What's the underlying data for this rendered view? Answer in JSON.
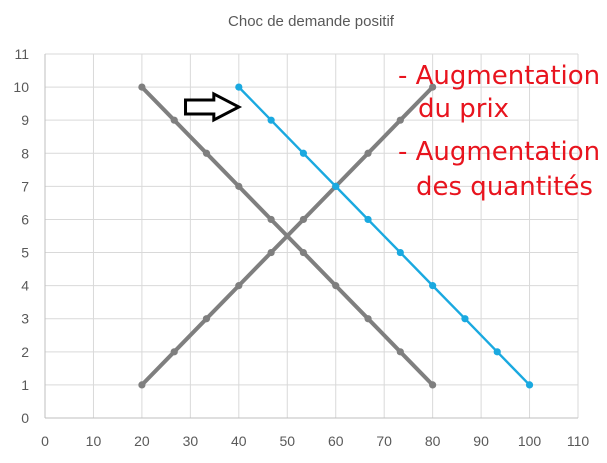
{
  "chart_data": {
    "type": "line",
    "title": "Choc de demande positif",
    "xlabel": "",
    "ylabel": "",
    "xlim": [
      0,
      110
    ],
    "ylim": [
      0,
      11
    ],
    "xticks": [
      0,
      10,
      20,
      30,
      40,
      50,
      60,
      70,
      80,
      90,
      100,
      110
    ],
    "yticks": [
      0,
      1,
      2,
      3,
      4,
      5,
      6,
      7,
      8,
      9,
      10,
      11
    ],
    "grid": true,
    "legend": "none",
    "series": [
      {
        "color": "#7f7f7f",
        "x": [
          20,
          26.67,
          33.33,
          40,
          46.67,
          53.33,
          60,
          66.67,
          73.33,
          80
        ],
        "y": [
          10,
          9,
          8,
          7,
          6,
          5,
          4,
          3,
          2,
          1
        ]
      },
      {
        "color": "#7f7f7f",
        "x": [
          20,
          26.67,
          33.33,
          40,
          46.67,
          53.33,
          60,
          66.67,
          73.33,
          80
        ],
        "y": [
          1,
          2,
          3,
          4,
          5,
          6,
          7,
          8,
          9,
          10
        ]
      },
      {
        "color": "#1aa9e0",
        "x": [
          40,
          46.67,
          53.33,
          60,
          66.67,
          73.33,
          80,
          86.67,
          93.33,
          100
        ],
        "y": [
          10,
          9,
          8,
          7,
          6,
          5,
          4,
          3,
          2,
          1
        ]
      }
    ],
    "annotations": [
      "- Augmentation",
      "du prix",
      "- Augmentation",
      "des quantités"
    ],
    "annotation_color": "#e8141e",
    "arrow": {
      "direction": "right",
      "icon": "right-arrow-icon",
      "from": [
        29,
        9.4
      ],
      "to": [
        40,
        9.4
      ]
    }
  }
}
